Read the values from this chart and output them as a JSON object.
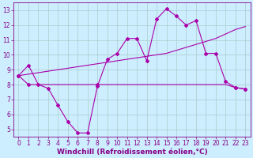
{
  "xlabel": "Windchill (Refroidissement éolien,°C)",
  "xlim": [
    -0.5,
    23.5
  ],
  "ylim": [
    4.5,
    13.5
  ],
  "xticks": [
    0,
    1,
    2,
    3,
    4,
    5,
    6,
    7,
    8,
    9,
    10,
    11,
    12,
    13,
    14,
    15,
    16,
    17,
    18,
    19,
    20,
    21,
    22,
    23
  ],
  "yticks": [
    5,
    6,
    7,
    8,
    9,
    10,
    11,
    12,
    13
  ],
  "bg_color": "#cceeff",
  "grid_color": "#aacccc",
  "line_color": "#aa00aa",
  "line1_x": [
    0,
    1,
    2,
    3,
    4,
    5,
    6,
    7,
    8,
    9,
    10,
    11,
    12,
    13,
    14,
    15,
    16,
    17,
    18,
    19,
    20,
    21,
    22,
    23
  ],
  "line1_y": [
    8.6,
    9.3,
    8.0,
    7.75,
    6.6,
    5.5,
    4.75,
    4.75,
    7.9,
    9.7,
    10.1,
    11.1,
    11.1,
    9.6,
    12.4,
    13.1,
    12.6,
    12.0,
    12.3,
    10.1,
    10.1,
    8.2,
    7.8,
    7.7
  ],
  "line2_x": [
    0,
    1,
    2,
    3,
    4,
    5,
    6,
    7,
    8,
    9,
    10,
    11,
    12,
    13,
    14,
    15,
    16,
    17,
    18,
    19,
    20,
    21,
    22,
    23
  ],
  "line2_y": [
    8.6,
    8.7,
    8.8,
    8.9,
    9.0,
    9.1,
    9.2,
    9.3,
    9.4,
    9.5,
    9.6,
    9.7,
    9.8,
    9.9,
    10.0,
    10.1,
    10.3,
    10.5,
    10.7,
    10.9,
    11.1,
    11.4,
    11.7,
    11.9
  ],
  "line3_x": [
    0,
    1,
    2,
    3,
    4,
    5,
    6,
    7,
    8,
    9,
    10,
    11,
    12,
    13,
    14,
    15,
    16,
    17,
    18,
    19,
    20,
    21,
    22,
    23
  ],
  "line3_y": [
    8.6,
    8.0,
    8.0,
    8.0,
    8.0,
    8.0,
    8.0,
    8.0,
    8.0,
    8.0,
    8.0,
    8.0,
    8.0,
    8.0,
    8.0,
    8.0,
    8.0,
    8.0,
    8.0,
    8.0,
    8.0,
    8.0,
    7.8,
    7.7
  ],
  "font_color": "#880088",
  "tick_fontsize": 5.5,
  "label_fontsize": 6.5
}
